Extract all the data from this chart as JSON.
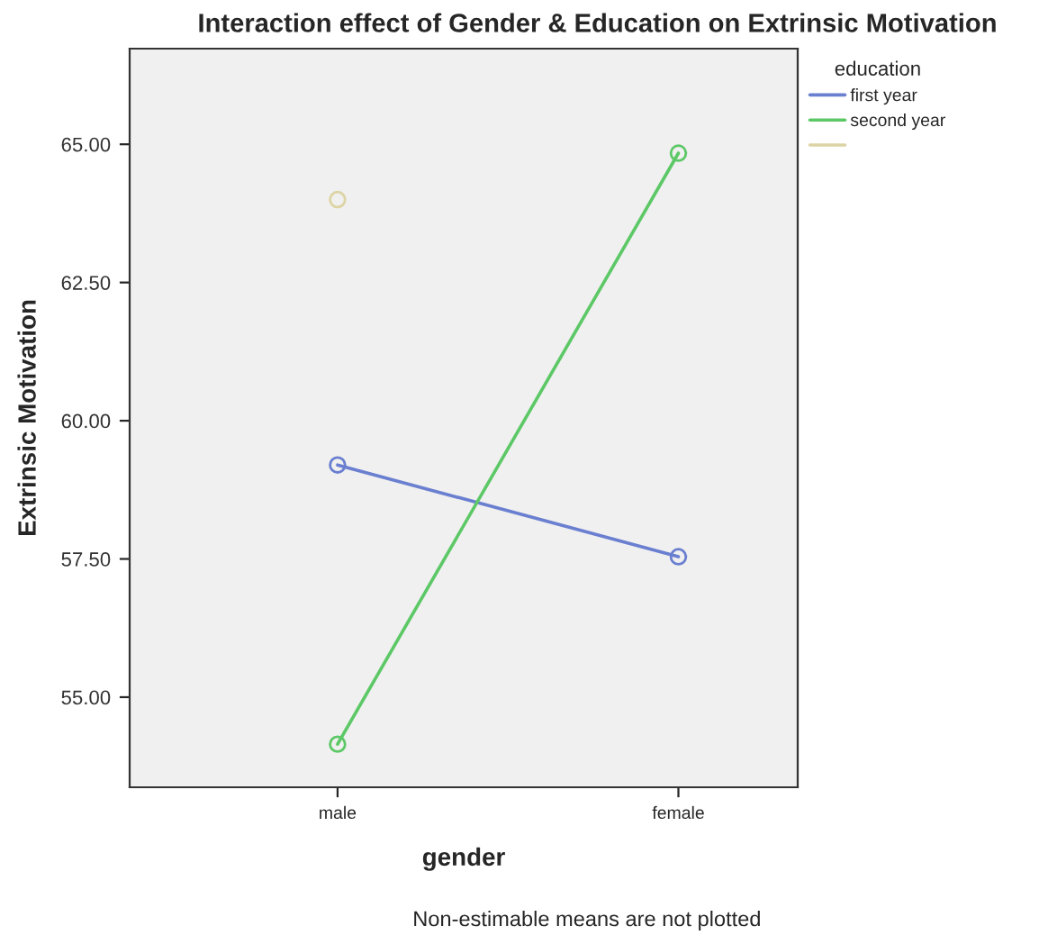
{
  "chart_data": {
    "type": "line",
    "title": "Interaction effect of Gender & Education on Extrinsic Motivation",
    "xlabel": "gender",
    "ylabel": "Extrinsic Motivation",
    "legend_title": "education",
    "categories": [
      "male",
      "female"
    ],
    "series": [
      {
        "name": "first year",
        "color": "#6a7fd0",
        "values": [
          59.2,
          57.54
        ]
      },
      {
        "name": "second year",
        "color": "#5cc866",
        "values": [
          54.15,
          64.84
        ]
      },
      {
        "color": "#ddd4a4",
        "values": [
          64.0,
          null
        ]
      }
    ],
    "ylim": [
      53.37,
      66.73
    ],
    "yticks": [
      {
        "value": 55,
        "label": "55.00"
      },
      {
        "value": 57.5,
        "label": "57.50"
      },
      {
        "value": 60,
        "label": "60.00"
      },
      {
        "value": 62.5,
        "label": "62.50"
      },
      {
        "value": 65,
        "label": "65.00"
      }
    ],
    "marker": "circle",
    "line_style": "solid",
    "grid": false,
    "legend": "top right",
    "annotations": [
      "Non-estimable means are not plotted"
    ]
  }
}
